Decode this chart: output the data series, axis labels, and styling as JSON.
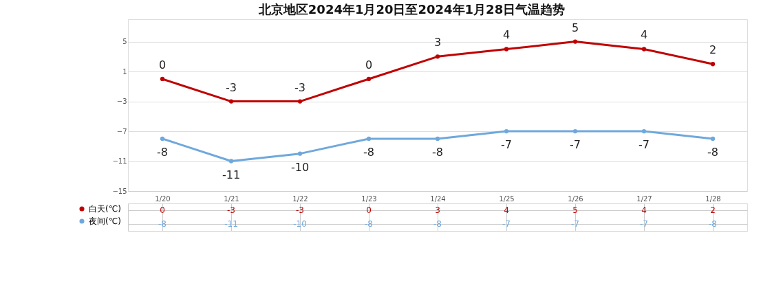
{
  "chart_data": {
    "type": "line",
    "title": "北京地区2024年1月20日至2024年1月28日气温趋势",
    "categories": [
      "1/20",
      "1/21",
      "1/22",
      "1/23",
      "1/24",
      "1/25",
      "1/26",
      "1/27",
      "1/28"
    ],
    "series": [
      {
        "name": "白天(℃)",
        "color": "#c00000",
        "values": [
          0,
          -3,
          -3,
          0,
          3,
          4,
          5,
          4,
          2
        ],
        "value_labels": [
          "0",
          "-3",
          "-3",
          "0",
          "3",
          "4",
          "5",
          "4",
          "2"
        ]
      },
      {
        "name": "夜间(℃)",
        "color": "#6fa8dc",
        "values": [
          -8,
          -11,
          -10,
          -8,
          -8,
          -7,
          -7,
          -7,
          -8
        ],
        "value_labels": [
          "-8",
          "-11",
          "-10",
          "-8",
          "-8",
          "-7",
          "-7",
          "-7",
          "-8"
        ]
      }
    ],
    "ylim": [
      -15,
      8
    ],
    "yticks": [
      -15,
      -11,
      -7,
      -3,
      1,
      5
    ],
    "grid": "y",
    "marker": "circle",
    "line_style": "solid",
    "legend": "bottom left"
  }
}
